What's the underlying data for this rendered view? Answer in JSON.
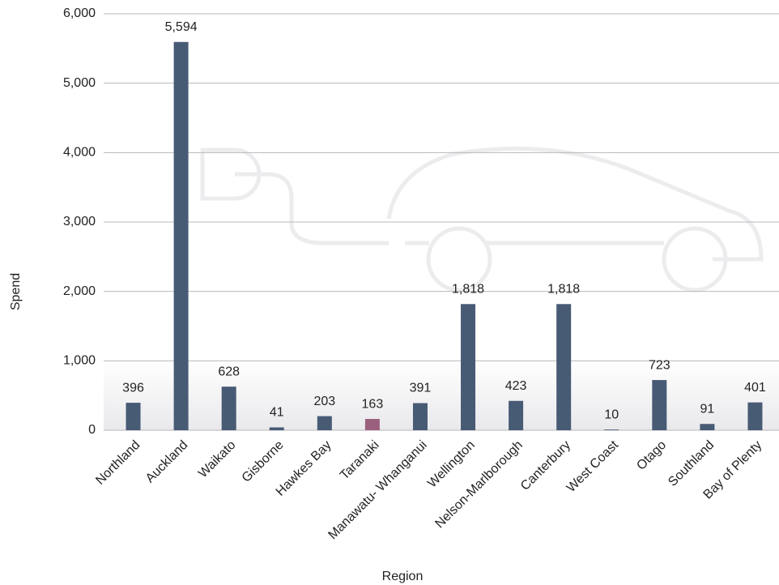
{
  "chart_data": {
    "type": "bar",
    "x_label": "Region",
    "y_label": "Spend",
    "categories": [
      "Northland",
      "Auckland",
      "Waikato",
      "Gisborne",
      "Hawkes Bay",
      "Taranaki",
      "Manawatu- Whanganui",
      "Wellington",
      "Nelson-Marlborough",
      "Canterbury",
      "West Coast",
      "Otago",
      "Southland",
      "Bay of Plenty"
    ],
    "values": [
      396,
      5594,
      628,
      41,
      203,
      163,
      391,
      1818,
      423,
      1818,
      10,
      723,
      91,
      401
    ],
    "value_labels": [
      "396",
      "5,594",
      "628",
      "41",
      "203",
      "163",
      "391",
      "1,818",
      "423",
      "1,818",
      "10",
      "723",
      "91",
      "401"
    ],
    "colors": [
      "#485b75",
      "#485b75",
      "#485b75",
      "#485b75",
      "#485b75",
      "#9b607e",
      "#485b75",
      "#485b75",
      "#485b75",
      "#485b75",
      "#485b75",
      "#485b75",
      "#485b75",
      "#485b75"
    ],
    "ylim": [
      0,
      6000
    ],
    "yticks": [
      0,
      {
        "value": 1000,
        "label": "1,000"
      },
      {
        "value": 2000,
        "label": "2,000"
      },
      {
        "value": 3000,
        "label": "3,000"
      },
      {
        "value": 4000,
        "label": "4,000"
      },
      {
        "value": 5000,
        "label": "5,000"
      },
      {
        "value": 6000,
        "label": "6,000"
      }
    ],
    "grid": true
  }
}
